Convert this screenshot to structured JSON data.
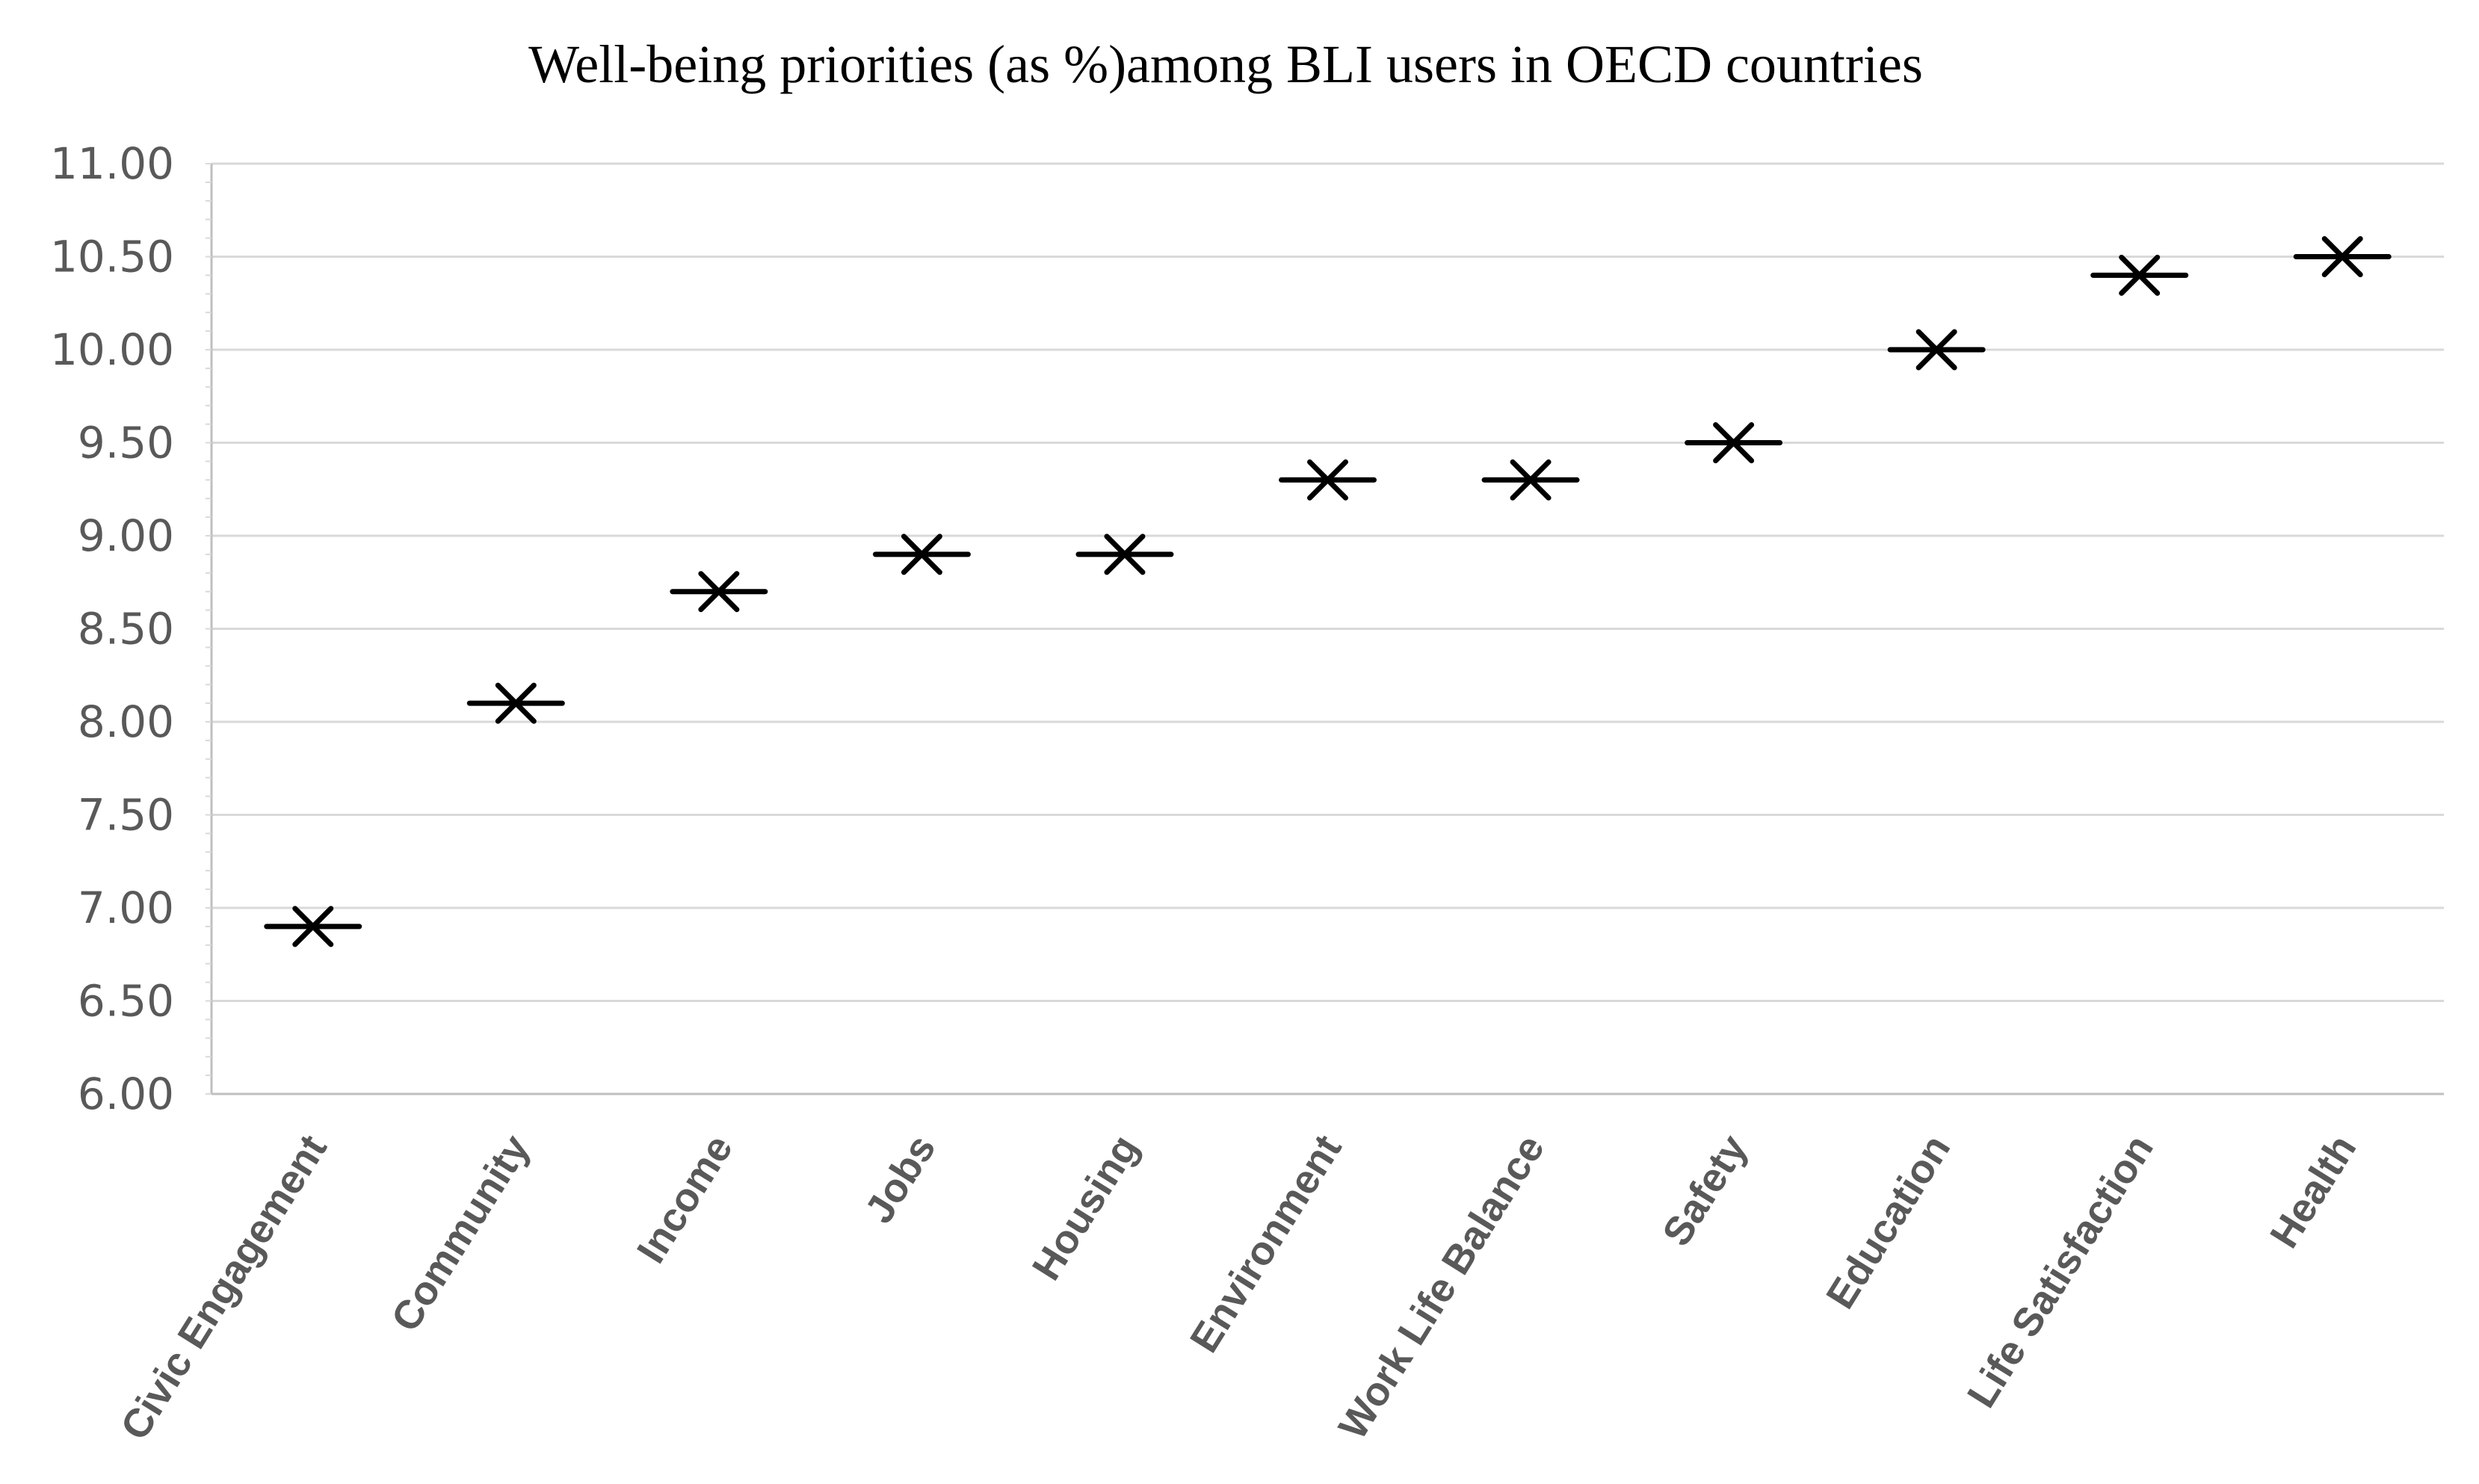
{
  "chart_data": {
    "type": "scatter",
    "title": "Well-being priorities (as %)among BLI users in OECD countries",
    "xlabel": "",
    "ylabel": "",
    "ylim": [
      6.0,
      11.0
    ],
    "y_ticks": [
      "6.00",
      "6.50",
      "7.00",
      "7.50",
      "8.00",
      "8.50",
      "9.00",
      "9.50",
      "10.00",
      "10.50",
      "11.00"
    ],
    "y_tick_values": [
      6.0,
      6.5,
      7.0,
      7.5,
      8.0,
      8.5,
      9.0,
      9.5,
      10.0,
      10.5,
      11.0
    ],
    "grid": true,
    "legend": "none",
    "marker": "x-with-horizontal-bar",
    "categories": [
      "Civic Engagement",
      "Community",
      "Income",
      "Jobs",
      "Housing",
      "Environment",
      "Work Life Balance",
      "Safety",
      "Education",
      "Life Satisfaction",
      "Health"
    ],
    "values": [
      6.9,
      8.1,
      8.7,
      8.9,
      8.9,
      9.3,
      9.3,
      9.5,
      10.0,
      10.4,
      10.5
    ],
    "colors": {
      "marker": "#000000",
      "grid": "#d9d9d9",
      "axis": "#bfbfbf",
      "tick_text": "#595959",
      "title_text": "#000000"
    }
  }
}
